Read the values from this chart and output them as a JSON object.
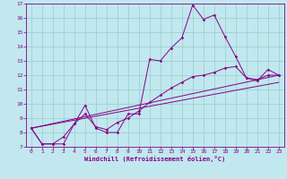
{
  "xlabel": "Windchill (Refroidissement éolien,°C)",
  "xlim": [
    -0.5,
    23.5
  ],
  "ylim": [
    7,
    17
  ],
  "xticks": [
    0,
    1,
    2,
    3,
    4,
    5,
    6,
    7,
    8,
    9,
    10,
    11,
    12,
    13,
    14,
    15,
    16,
    17,
    18,
    19,
    20,
    21,
    22,
    23
  ],
  "yticks": [
    7,
    8,
    9,
    10,
    11,
    12,
    13,
    14,
    15,
    16,
    17
  ],
  "bg_color": "#c0e8ee",
  "line_color": "#880088",
  "grid_color": "#99cccc",
  "series": [
    {
      "x": [
        0,
        1,
        2,
        3,
        4,
        5,
        6,
        7,
        8,
        9,
        10,
        11,
        12,
        13,
        14,
        15,
        16,
        17,
        18,
        19,
        20,
        21,
        22,
        23
      ],
      "y": [
        8.3,
        7.2,
        7.2,
        7.2,
        8.6,
        9.9,
        8.3,
        8.0,
        8.0,
        9.3,
        9.3,
        13.1,
        13.0,
        13.9,
        14.6,
        16.9,
        15.9,
        16.2,
        14.7,
        13.3,
        11.8,
        11.6,
        12.4,
        12.0
      ],
      "marker": true
    },
    {
      "x": [
        0,
        1,
        2,
        3,
        4,
        5,
        6,
        7,
        8,
        9,
        10,
        11,
        12,
        13,
        14,
        15,
        16,
        17,
        18,
        19,
        20,
        21,
        22,
        23
      ],
      "y": [
        8.3,
        7.2,
        7.2,
        7.7,
        8.6,
        9.3,
        8.4,
        8.2,
        8.7,
        9.0,
        9.5,
        10.1,
        10.6,
        11.1,
        11.5,
        11.9,
        12.0,
        12.2,
        12.5,
        12.6,
        11.8,
        11.7,
        12.0,
        12.0
      ],
      "marker": true
    },
    {
      "x": [
        0,
        23
      ],
      "y": [
        8.3,
        12.0
      ],
      "marker": false
    },
    {
      "x": [
        0,
        23
      ],
      "y": [
        8.3,
        11.5
      ],
      "marker": false
    }
  ]
}
